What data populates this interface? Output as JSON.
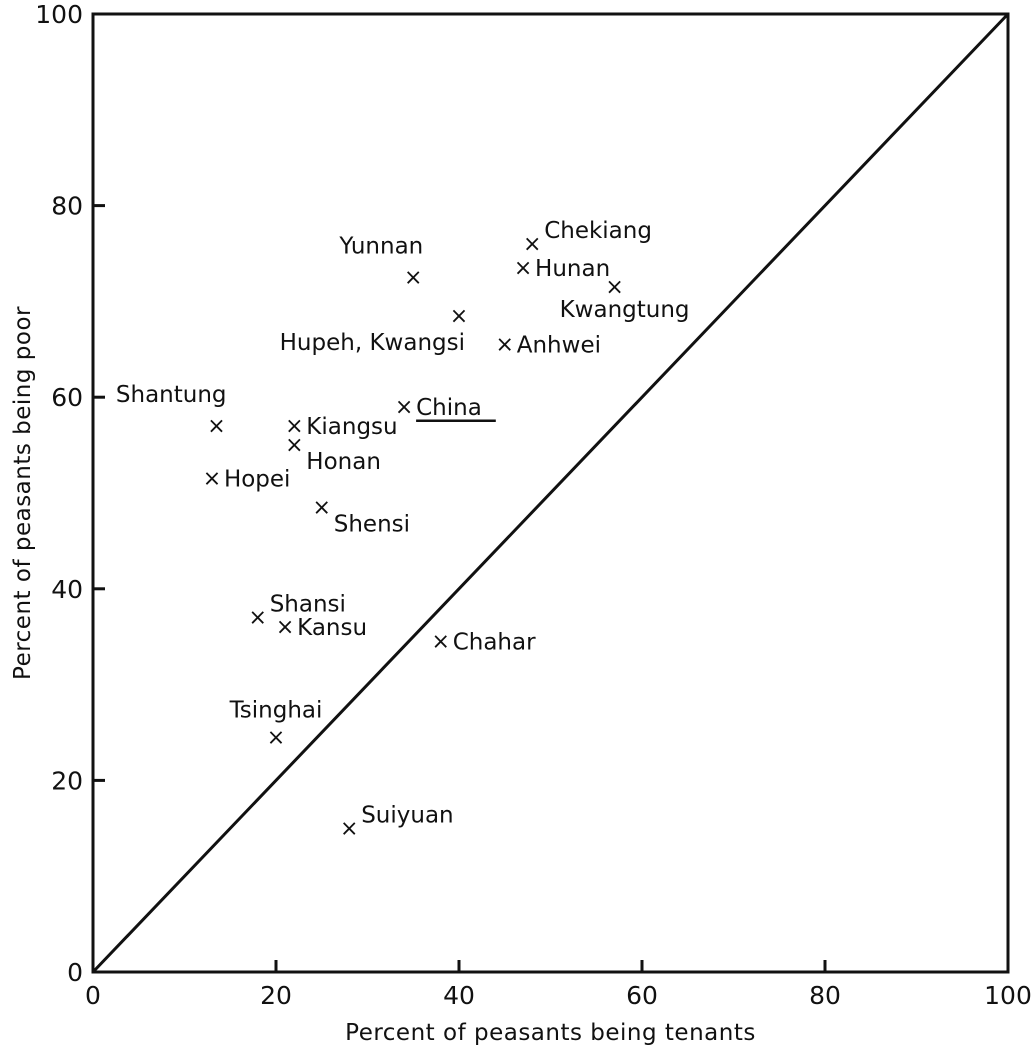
{
  "chart_data": {
    "type": "scatter",
    "xlabel": "Percent of peasants being tenants",
    "ylabel": "Percent of peasants being poor",
    "xlim": [
      0,
      100
    ],
    "ylim": [
      0,
      100
    ],
    "x_ticks": [
      "0",
      "20",
      "40",
      "60",
      "80",
      "100"
    ],
    "y_ticks": [
      "0",
      "20",
      "40",
      "60",
      "80",
      "100"
    ],
    "reference_line": {
      "from": [
        0,
        0
      ],
      "to": [
        100,
        100
      ]
    },
    "marker": "x",
    "points": [
      {
        "label": "Chekiang",
        "x": 48,
        "y": 76,
        "label_pos": "upper-right"
      },
      {
        "label": "Hunan",
        "x": 47,
        "y": 73.5,
        "label_pos": "right"
      },
      {
        "label": "Yunnan",
        "x": 35,
        "y": 72.5,
        "label_pos": "upper-left"
      },
      {
        "label": "Kwangtung",
        "x": 57,
        "y": 71.5,
        "label_pos": "below"
      },
      {
        "label": "Hupeh, Kwangsi",
        "x": 40,
        "y": 68.5,
        "label_pos": "below-left"
      },
      {
        "label": "Anhwei",
        "x": 45,
        "y": 65.5,
        "label_pos": "right"
      },
      {
        "label": "China",
        "x": 34,
        "y": 59,
        "label_pos": "right",
        "underline": true
      },
      {
        "label": "Shantung",
        "x": 13.5,
        "y": 57,
        "label_pos": "upper-left"
      },
      {
        "label": "Kiangsu",
        "x": 22,
        "y": 57,
        "label_pos": "right"
      },
      {
        "label": "Honan",
        "x": 22,
        "y": 55,
        "label_pos": "below-right"
      },
      {
        "label": "Hopei",
        "x": 13,
        "y": 51.5,
        "label_pos": "right"
      },
      {
        "label": "Shensi",
        "x": 25,
        "y": 48.5,
        "label_pos": "below-right"
      },
      {
        "label": "Shansi",
        "x": 18,
        "y": 37,
        "label_pos": "upper-right"
      },
      {
        "label": "Kansu",
        "x": 21,
        "y": 36,
        "label_pos": "right"
      },
      {
        "label": "Chahar",
        "x": 38,
        "y": 34.5,
        "label_pos": "right"
      },
      {
        "label": "Tsinghai",
        "x": 20,
        "y": 24.5,
        "label_pos": "above"
      },
      {
        "label": "Suiyuan",
        "x": 28,
        "y": 15,
        "label_pos": "upper-right"
      }
    ]
  }
}
